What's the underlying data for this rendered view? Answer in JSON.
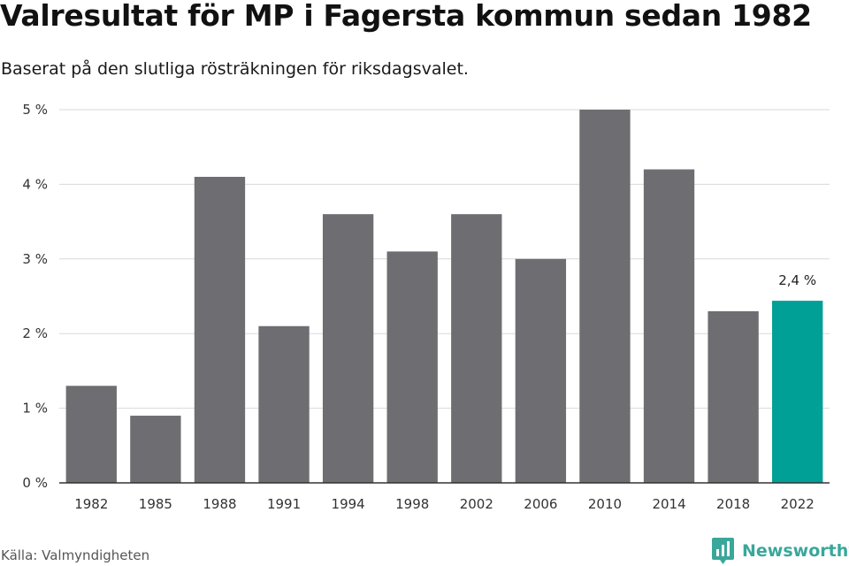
{
  "title": "Valresultat för MP i Fagersta kommun sedan 1982",
  "subtitle": "Baserat på den slutliga rösträkningen för riksdagsvalet.",
  "source": "Källa: Valmyndigheten",
  "brand": {
    "name": "Newsworthy",
    "icon": "newsworthy-logo-icon"
  },
  "colors": {
    "bar": "#6e6d72",
    "highlight": "#00a096",
    "grid": "#d9d9d9",
    "axis": "#333333",
    "brand": "#3aa79b"
  },
  "chart_data": {
    "type": "bar",
    "categories": [
      "1982",
      "1985",
      "1988",
      "1991",
      "1994",
      "1998",
      "2002",
      "2006",
      "2010",
      "2014",
      "2018",
      "2022"
    ],
    "values": [
      1.3,
      0.9,
      4.1,
      2.1,
      3.6,
      3.1,
      3.6,
      3.0,
      5.0,
      4.2,
      2.3,
      2.44
    ],
    "ylim": [
      0,
      5
    ],
    "yticks": [
      0,
      1,
      2,
      3,
      4,
      5
    ],
    "ytick_labels": [
      "0 %",
      "1 %",
      "2 %",
      "3 %",
      "4 %",
      "5 %"
    ],
    "grid": true,
    "highlight_category": "2022",
    "annotations": [
      {
        "category": "2022",
        "text": "2,4 %"
      }
    ]
  }
}
